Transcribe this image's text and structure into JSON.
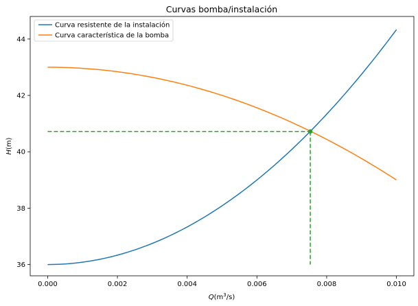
{
  "chart_data": {
    "type": "line",
    "title": "Curvas bomba/instalación",
    "xlabel_main": "Q",
    "xlabel_open": "(m",
    "xlabel_sup": "3",
    "xlabel_close": "/s)",
    "ylabel_main": "H",
    "ylabel_rest": "(m)",
    "xlim": [
      -0.0005,
      0.0105
    ],
    "ylim": [
      35.6,
      44.8
    ],
    "x_ticks": [
      0.0,
      0.002,
      0.004,
      0.006,
      0.008,
      0.01
    ],
    "x_tick_labels": [
      "0.000",
      "0.002",
      "0.004",
      "0.006",
      "0.008",
      "0.010"
    ],
    "y_ticks": [
      36,
      38,
      40,
      42,
      44
    ],
    "y_tick_labels": [
      "36",
      "38",
      "40",
      "42",
      "44"
    ],
    "legend_position": "upper-left",
    "series": [
      {
        "name": "Curva resistente de la instalación",
        "color": "#1f77b4",
        "x": [
          0.0,
          0.001,
          0.002,
          0.003,
          0.004,
          0.005,
          0.006,
          0.007,
          0.0075,
          0.008,
          0.009,
          0.01
        ],
        "y": [
          36.0,
          36.08,
          36.33,
          36.75,
          37.33,
          38.08,
          39.0,
          40.08,
          40.7,
          41.33,
          42.75,
          44.33
        ]
      },
      {
        "name": "Curva característica de la bomba",
        "color": "#ff7f0e",
        "x": [
          0.0,
          0.001,
          0.002,
          0.003,
          0.004,
          0.005,
          0.006,
          0.007,
          0.0075,
          0.008,
          0.009,
          0.01
        ],
        "y": [
          43.0,
          42.96,
          42.84,
          42.64,
          42.36,
          42.0,
          41.56,
          41.04,
          40.75,
          40.44,
          39.76,
          39.0
        ]
      }
    ],
    "operating_point": {
      "x": 0.00753,
      "y": 40.72,
      "color": "#2ca02c"
    },
    "guide_lines": [
      {
        "x": [
          0.0,
          0.00753
        ],
        "y": [
          40.72,
          40.72
        ]
      },
      {
        "x": [
          0.00753,
          0.00753
        ],
        "y": [
          40.72,
          36.0
        ]
      }
    ]
  }
}
